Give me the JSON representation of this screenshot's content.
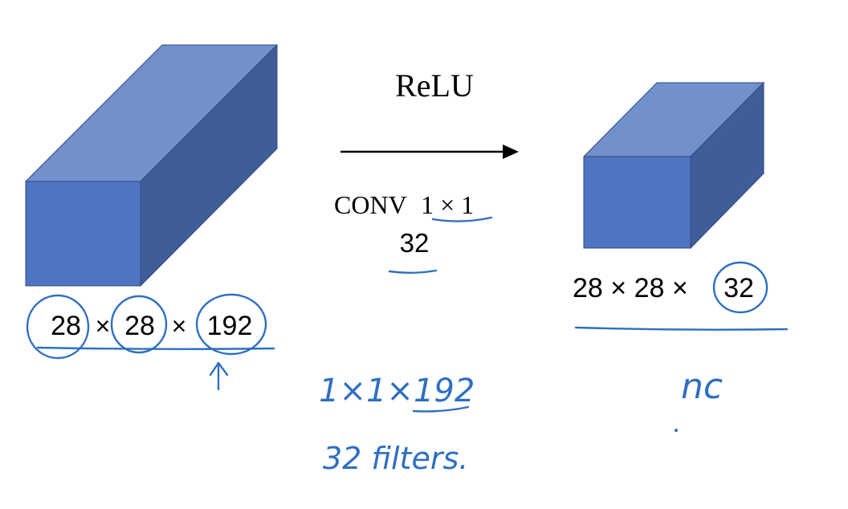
{
  "colors": {
    "cube_front": "#4f74c2",
    "cube_top": "#7190cc",
    "cube_side": "#3f5e99",
    "cube_edge": "#2e4a80",
    "ink": "#2f6fc0",
    "arrow": "#000000"
  },
  "operation": {
    "activation": "ReLU",
    "conv_prefix": "CONV",
    "conv_size": "1 × 1",
    "num_filters": "32"
  },
  "input_volume": {
    "dim_a": "28",
    "dim_b": "28",
    "dim_c": "192",
    "separator": "×"
  },
  "output_volume": {
    "dims_text": "28 × 28 ×",
    "channels": "32"
  },
  "handwriting": {
    "filter_shape_prefix": "1×1×",
    "filter_shape_depth": "192",
    "filter_count": "32 filters.",
    "channels_symbol": "nc"
  },
  "icons": {
    "up_arrow": "up-arrow-icon",
    "flow_arrow": "right-arrow-icon"
  }
}
